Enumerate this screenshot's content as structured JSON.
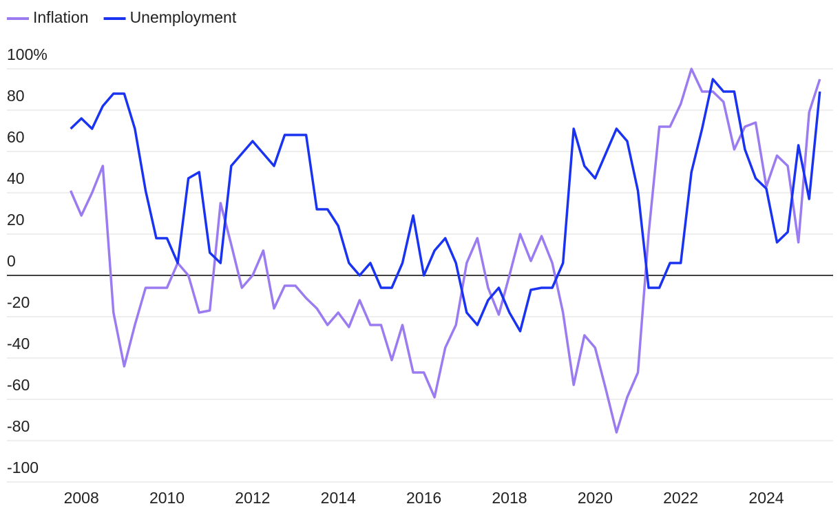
{
  "chart_data": {
    "type": "line",
    "x": [
      2007.75,
      2008,
      2008.25,
      2008.5,
      2008.75,
      2009,
      2009.25,
      2009.5,
      2009.75,
      2010,
      2010.25,
      2010.5,
      2010.75,
      2011,
      2011.25,
      2011.5,
      2011.75,
      2012,
      2012.25,
      2012.5,
      2012.75,
      2013,
      2013.25,
      2013.5,
      2013.75,
      2014,
      2014.25,
      2014.5,
      2014.75,
      2015,
      2015.25,
      2015.5,
      2015.75,
      2016,
      2016.25,
      2016.5,
      2016.75,
      2017,
      2017.25,
      2017.5,
      2017.75,
      2018,
      2018.25,
      2018.5,
      2018.75,
      2019,
      2019.25,
      2019.5,
      2019.75,
      2020,
      2020.25,
      2020.5,
      2020.75,
      2021,
      2021.25,
      2021.5,
      2021.75,
      2022,
      2022.25,
      2022.5,
      2022.75,
      2023,
      2023.25,
      2023.5,
      2023.75,
      2024,
      2024.25,
      2024.5,
      2024.75,
      2025,
      2025.25
    ],
    "series": [
      {
        "name": "Inflation",
        "color": "#9b7bf0",
        "values": [
          41,
          29,
          40,
          53,
          -18,
          -44,
          -24,
          -6,
          -6,
          -6,
          6,
          0,
          -18,
          -17,
          35,
          15,
          -6,
          0,
          12,
          -16,
          -5,
          -5,
          -11,
          -16,
          -24,
          -18,
          -25,
          -12,
          -24,
          -24,
          -41,
          -24,
          -47,
          -47,
          -59,
          -35,
          -24,
          6,
          18,
          -6,
          -19,
          0,
          20,
          7,
          19,
          6,
          -18,
          -53,
          -29,
          -35,
          -55,
          -76,
          -59,
          -47,
          20,
          72,
          72,
          83,
          100,
          89,
          89,
          84,
          61,
          72,
          74,
          43,
          58,
          53,
          16,
          79,
          95
        ]
      },
      {
        "name": "Unemployment",
        "color": "#1a33f0",
        "values": [
          71,
          76,
          71,
          82,
          88,
          88,
          71,
          41,
          18,
          18,
          6,
          47,
          50,
          11,
          6,
          53,
          59,
          65,
          59,
          53,
          68,
          68,
          68,
          32,
          32,
          24,
          6,
          0,
          6,
          -6,
          -6,
          6,
          29,
          0,
          12,
          18,
          6,
          -18,
          -24,
          -12,
          -6,
          -18,
          -27,
          -7,
          -6,
          -6,
          6,
          71,
          53,
          47,
          59,
          71,
          65,
          41,
          -6,
          -6,
          6,
          6,
          50,
          71,
          95,
          89,
          89,
          61,
          47,
          42,
          16,
          21,
          63,
          37,
          89
        ]
      }
    ],
    "xlim": [
      2006.26,
      2025.56
    ],
    "xticks": [
      2008,
      2010,
      2012,
      2014,
      2016,
      2018,
      2020,
      2022,
      2024
    ],
    "ylim": [
      -100,
      100
    ],
    "yticks": [
      {
        "value": 100,
        "label": "100%"
      },
      80,
      60,
      40,
      20,
      0,
      -20,
      -40,
      -60,
      -80,
      -100
    ],
    "grid": true
  }
}
